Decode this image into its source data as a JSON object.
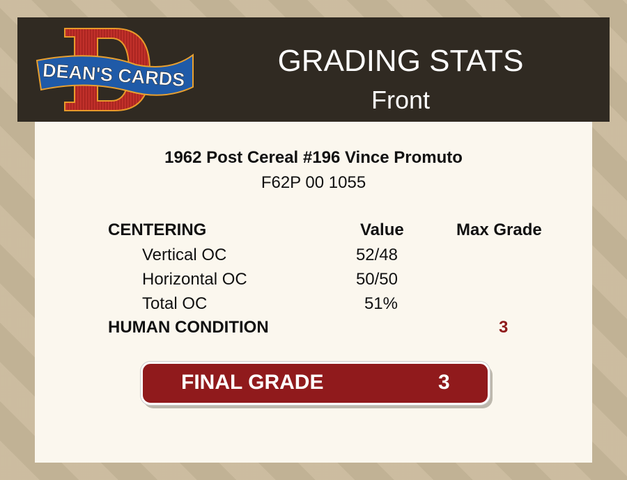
{
  "logo": {
    "text": "DEAN'S CARDS",
    "letter": "D"
  },
  "header": {
    "title": "GRADING STATS",
    "subtitle": "Front"
  },
  "card": {
    "name": "1962 Post Cereal #196 Vince Promuto",
    "cert": "F62P 00 1055"
  },
  "table": {
    "section": "CENTERING",
    "value_header": "Value",
    "max_header": "Max Grade",
    "rows": [
      {
        "label": "Vertical OC",
        "value": "52/48"
      },
      {
        "label": "Horizontal OC",
        "value": "50/50"
      },
      {
        "label": "Total OC",
        "value": "51%"
      }
    ],
    "human_label": "HUMAN CONDITION",
    "human_grade": "3"
  },
  "final": {
    "label": "FINAL GRADE",
    "value": "3"
  },
  "colors": {
    "header": "#302a22",
    "accent": "#901a1c",
    "card": "#fbf7ee"
  }
}
